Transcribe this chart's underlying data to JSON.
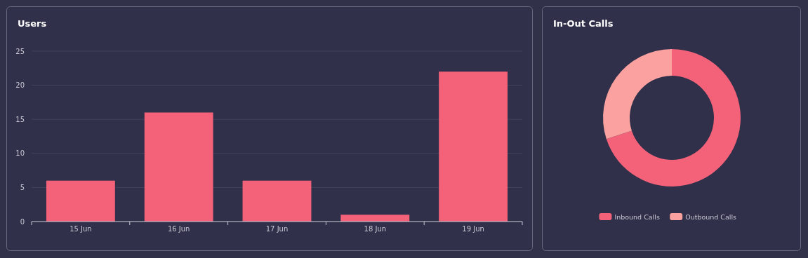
{
  "chart_data": [
    {
      "type": "bar",
      "title": "Users",
      "categories": [
        "15 Jun",
        "16 Jun",
        "17 Jun",
        "18 Jun",
        "19 Jun"
      ],
      "values": [
        6,
        16,
        6,
        1,
        22
      ],
      "color": "#f4627a",
      "ylim": [
        0,
        25
      ],
      "yticks": [
        0,
        5,
        10,
        15,
        20,
        25
      ],
      "grid": "y"
    },
    {
      "type": "donut",
      "title": "In-Out Calls",
      "categories": [
        "Inbound Calls",
        "Outbound Calls"
      ],
      "values": [
        70,
        30
      ],
      "colors": [
        "#f4627a",
        "#fba19f"
      ],
      "legend": "bottom"
    }
  ]
}
